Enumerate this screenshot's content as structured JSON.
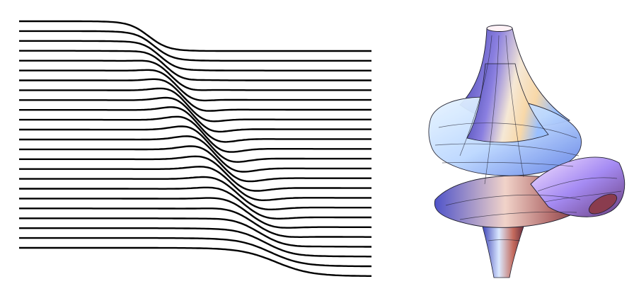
{
  "figure": {
    "left_panel": {
      "kind": "wavy-line-family",
      "line_count": 24,
      "line_color": "#000000"
    },
    "right_panel": {
      "kind": "twisted-surface-of-revolution",
      "mesh_color": "#1f1f2e",
      "palette": [
        "#e9f7ff",
        "#6fa3ff",
        "#7b7cf0",
        "#d3a9c7",
        "#f7ead0",
        "#a83a3a"
      ]
    }
  }
}
